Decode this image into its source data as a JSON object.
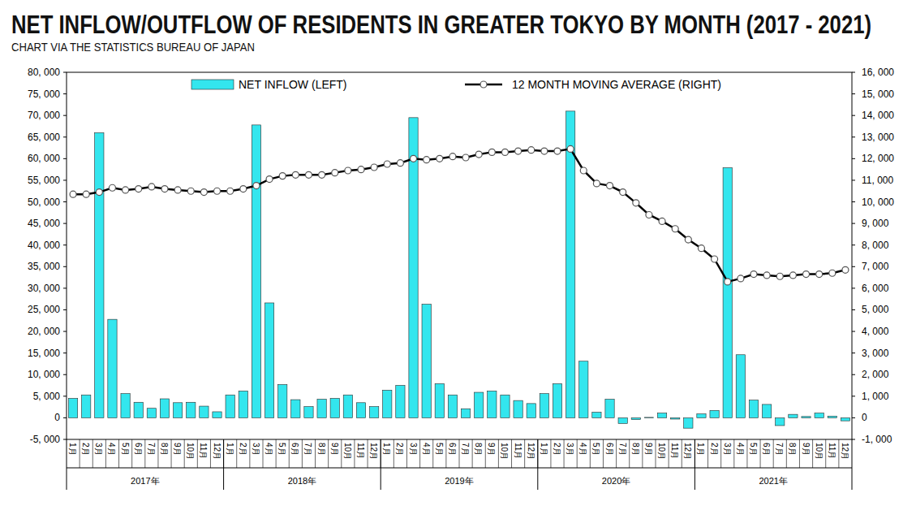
{
  "chart_data": {
    "type": "bar",
    "title": "NET INFLOW/OUTFLOW OF RESIDENTS IN GREATER TOKYO BY MONTH (2017 - 2021)",
    "subtitle": "CHART VIA THE STATISTICS BUREAU OF JAPAN",
    "categories": [
      "1月",
      "2月",
      "3月",
      "4月",
      "5月",
      "6月",
      "7月",
      "8月",
      "9月",
      "10月",
      "11月",
      "12月",
      "1月",
      "2月",
      "3月",
      "4月",
      "5月",
      "6月",
      "7月",
      "8月",
      "9月",
      "10月",
      "11月",
      "12月",
      "1月",
      "2月",
      "3月",
      "4月",
      "5月",
      "6月",
      "7月",
      "8月",
      "9月",
      "10月",
      "11月",
      "12月",
      "1月",
      "2月",
      "3月",
      "4月",
      "5月",
      "6月",
      "7月",
      "8月",
      "9月",
      "10月",
      "11月",
      "12月",
      "1月",
      "2月",
      "3月",
      "4月",
      "5月",
      "6月",
      "7月",
      "8月",
      "9月",
      "10月",
      "11月",
      "12月"
    ],
    "groups": [
      "2017年",
      "2018年",
      "2019年",
      "2020年",
      "2021年"
    ],
    "series": [
      {
        "name": "NET INFLOW (LEFT)",
        "type": "bar",
        "color": "#33e6ee",
        "values": [
          4500,
          5300,
          66000,
          22800,
          5600,
          3600,
          2200,
          4400,
          3500,
          3600,
          2700,
          1400,
          5300,
          6200,
          67800,
          26600,
          7700,
          4200,
          2600,
          4300,
          4500,
          5300,
          3500,
          2600,
          6400,
          7500,
          69500,
          26300,
          7900,
          5300,
          2100,
          5900,
          6200,
          5300,
          4000,
          3300,
          5600,
          7900,
          71000,
          13100,
          1300,
          4300,
          -1300,
          -400,
          100,
          1100,
          -300,
          -2400,
          900,
          1700,
          57900,
          14600,
          4100,
          3100,
          -1800,
          800,
          300,
          1100,
          400,
          -700
        ]
      },
      {
        "name": "12 MONTH MOVING AVERAGE (RIGHT)",
        "type": "line",
        "axis": "y2",
        "color": "#000000",
        "marker": "circle",
        "values": [
          10350,
          10350,
          10450,
          10650,
          10550,
          10600,
          10700,
          10600,
          10550,
          10500,
          10450,
          10500,
          10500,
          10600,
          10750,
          11050,
          11200,
          11250,
          11250,
          11250,
          11350,
          11450,
          11500,
          11600,
          11750,
          11800,
          12000,
          11950,
          12000,
          12100,
          12050,
          12200,
          12300,
          12300,
          12350,
          12400,
          12350,
          12350,
          12450,
          11450,
          10850,
          10750,
          10450,
          9950,
          9400,
          9100,
          8750,
          8250,
          7850,
          7350,
          6300,
          6450,
          6650,
          6600,
          6550,
          6600,
          6650,
          6650,
          6700,
          6850
        ]
      }
    ],
    "ylim": [
      -5000,
      80000
    ],
    "yticks": [
      {
        "value": -5000,
        "label": "-5, 000"
      },
      0,
      {
        "value": 5000,
        "label": "5, 000"
      },
      {
        "value": 10000,
        "label": "10, 000"
      },
      {
        "value": 15000,
        "label": "15, 000"
      },
      {
        "value": 20000,
        "label": "20, 000"
      },
      {
        "value": 25000,
        "label": "25, 000"
      },
      {
        "value": 30000,
        "label": "30, 000"
      },
      {
        "value": 35000,
        "label": "35, 000"
      },
      {
        "value": 40000,
        "label": "40, 000"
      },
      {
        "value": 45000,
        "label": "45, 000"
      },
      {
        "value": 50000,
        "label": "50, 000"
      },
      {
        "value": 55000,
        "label": "55, 000"
      },
      {
        "value": 60000,
        "label": "60, 000"
      },
      {
        "value": 65000,
        "label": "65, 000"
      },
      {
        "value": 70000,
        "label": "70, 000"
      },
      {
        "value": 75000,
        "label": "75, 000"
      },
      {
        "value": 80000,
        "label": "80, 000"
      }
    ],
    "y2lim": [
      -1000,
      16000
    ],
    "y2ticks": [
      {
        "value": -1000,
        "label": "-1, 000"
      },
      0,
      {
        "value": 1000,
        "label": "1, 000"
      },
      {
        "value": 2000,
        "label": "2, 000"
      },
      {
        "value": 3000,
        "label": "3, 000"
      },
      {
        "value": 4000,
        "label": "4, 000"
      },
      {
        "value": 5000,
        "label": "5, 000"
      },
      {
        "value": 6000,
        "label": "6, 000"
      },
      {
        "value": 7000,
        "label": "7, 000"
      },
      {
        "value": 8000,
        "label": "8, 000"
      },
      {
        "value": 9000,
        "label": "9, 000"
      },
      {
        "value": 10000,
        "label": "10, 000"
      },
      {
        "value": 11000,
        "label": "11, 000"
      },
      {
        "value": 12000,
        "label": "12, 000"
      },
      {
        "value": 13000,
        "label": "13, 000"
      },
      {
        "value": 14000,
        "label": "14, 000"
      },
      {
        "value": 15000,
        "label": "15, 000"
      },
      {
        "value": 16000,
        "label": "16, 000"
      }
    ],
    "grid": false,
    "legend": "top"
  }
}
